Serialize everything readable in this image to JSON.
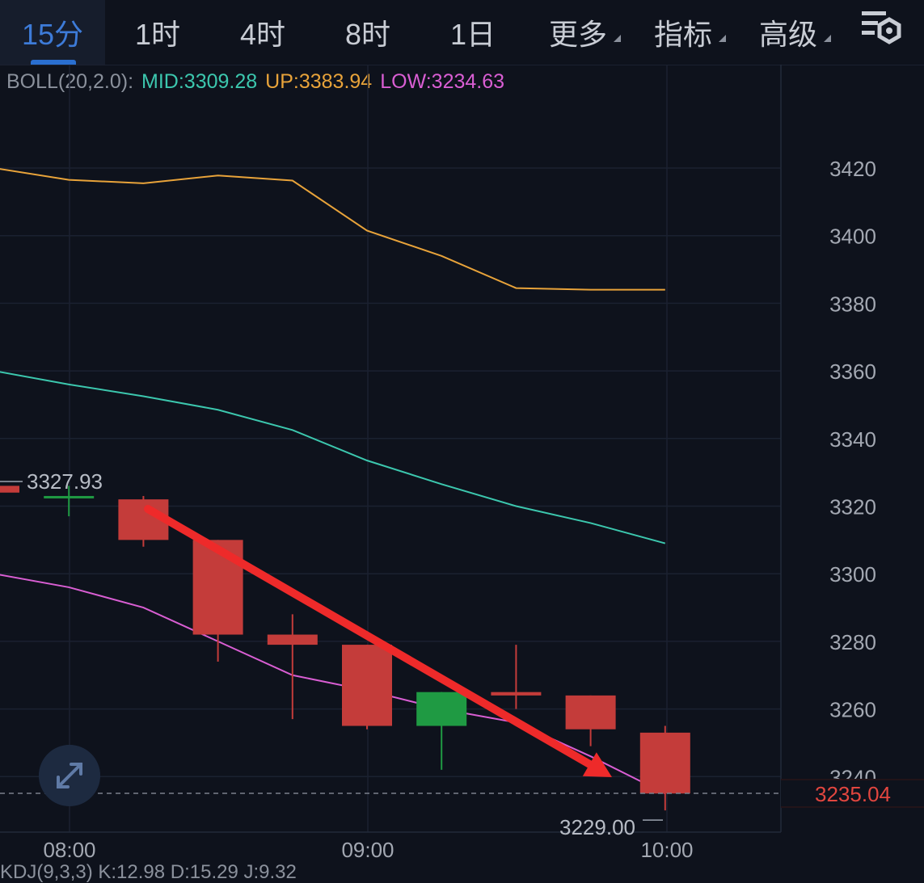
{
  "toolbar": {
    "tabs": [
      {
        "label": "15分",
        "active": true
      },
      {
        "label": "1时"
      },
      {
        "label": "4时"
      },
      {
        "label": "8时"
      },
      {
        "label": "1日"
      },
      {
        "label": "更多",
        "dropdown": true
      },
      {
        "label": "指标",
        "dropdown": true
      },
      {
        "label": "高级",
        "dropdown": true
      }
    ],
    "settings_icon": "chart-settings-gear-icon"
  },
  "legend": {
    "label": "BOLL(20,2.0):",
    "mid": "MID:3309.28",
    "up": "UP:3383.94",
    "low": "LOW:3234.63"
  },
  "colors": {
    "background": "#0e121c",
    "up_candle": "#1f9a43",
    "down_candle": "#c43c3a",
    "mid": "#3cc7ae",
    "up_band": "#e8a33a",
    "low_band": "#d95ed3",
    "arrow": "#ee2a2a",
    "price_tag": "#e2463f"
  },
  "chart_data": {
    "type": "candlestick",
    "x_ticks": [
      "08:00",
      "09:00",
      "10:00"
    ],
    "y_ticks": [
      3420,
      3400,
      3380,
      3360,
      3340,
      3320,
      3300,
      3280,
      3260,
      3240
    ],
    "ylim": [
      3217,
      3452
    ],
    "candles": [
      {
        "o": 3326,
        "h": 3327,
        "l": 3324,
        "c": 3324
      },
      {
        "o": 3323,
        "h": 3326,
        "l": 3317,
        "c": 3323
      },
      {
        "o": 3322,
        "h": 3323,
        "l": 3308,
        "c": 3310
      },
      {
        "o": 3310,
        "h": 3310,
        "l": 3274,
        "c": 3282
      },
      {
        "o": 3282,
        "h": 3288,
        "l": 3257,
        "c": 3279
      },
      {
        "o": 3279,
        "h": 3279,
        "l": 3254,
        "c": 3255
      },
      {
        "o": 3255,
        "h": 3265,
        "l": 3242,
        "c": 3265
      },
      {
        "o": 3265,
        "h": 3279,
        "l": 3260,
        "c": 3264
      },
      {
        "o": 3264,
        "h": 3264,
        "l": 3249,
        "c": 3254
      },
      {
        "o": 3253,
        "h": 3255,
        "l": 3230,
        "c": 3235
      }
    ],
    "series": [
      {
        "key": "up",
        "values": [
          3420,
          3416.5,
          3415.5,
          3417.8,
          3416.3,
          3401.5,
          3394,
          3384.5,
          3384,
          3384
        ]
      },
      {
        "key": "mid",
        "values": [
          3360,
          3356,
          3352.5,
          3348.5,
          3342.5,
          3333.5,
          3326.5,
          3320,
          3315,
          3309
        ]
      },
      {
        "key": "low",
        "values": [
          3300,
          3296,
          3290,
          3280,
          3270,
          3265.5,
          3260,
          3256,
          3246,
          3235
        ]
      }
    ],
    "max_label": "3327.93",
    "min_label": "3229.00",
    "last_price": "3235.04",
    "last_price_value": 3235.04,
    "annotation": "downtrend-arrow"
  },
  "expand_icon": "expand-arrows-icon",
  "sub_indicator_text": "KDJ(9,3,3) K:12.98 D:15.29 J:9.32"
}
